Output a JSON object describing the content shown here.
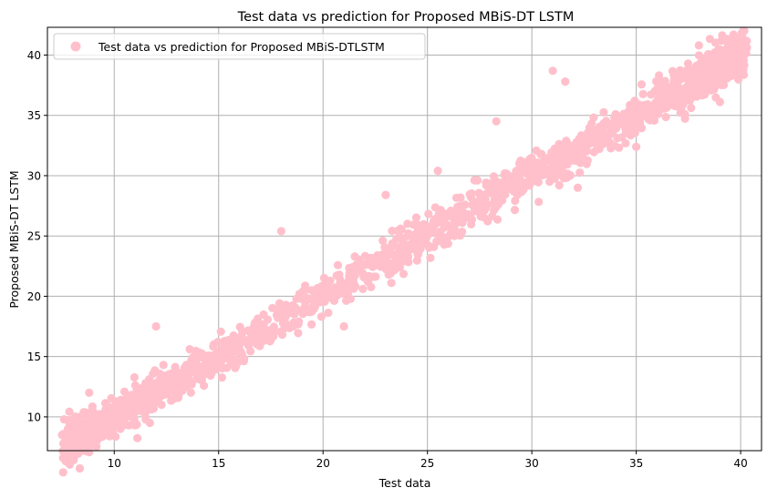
{
  "chart_data": {
    "type": "scatter",
    "title": "Test data vs prediction for Proposed MBiS-DT LSTM",
    "xlabel": "Test data",
    "ylabel": "Proposed MBiS-DT LSTM",
    "xlim": [
      6.8,
      41.0
    ],
    "ylim": [
      7.2,
      42.3
    ],
    "xticks": [
      10,
      15,
      20,
      25,
      30,
      35,
      40
    ],
    "yticks": [
      10,
      15,
      20,
      25,
      30,
      35,
      40
    ],
    "grid": true,
    "legend_position": "top-left",
    "series": [
      {
        "name": "Test data vs prediction for Proposed MBiS-DTLSTM",
        "color": "#ffc0cb",
        "point_count": 2000,
        "x_range": [
          7.5,
          40.3
        ],
        "relation": "y ≈ x",
        "notable_points": [
          {
            "x": 7.5,
            "y": 8.5
          },
          {
            "x": 7.6,
            "y": 9.8
          },
          {
            "x": 8.8,
            "y": 12.0
          },
          {
            "x": 11.0,
            "y": 9.3
          },
          {
            "x": 12.0,
            "y": 17.5
          },
          {
            "x": 18.0,
            "y": 25.4
          },
          {
            "x": 21.0,
            "y": 17.5
          },
          {
            "x": 23.0,
            "y": 28.4
          },
          {
            "x": 25.5,
            "y": 30.4
          },
          {
            "x": 28.3,
            "y": 34.5
          },
          {
            "x": 31.0,
            "y": 38.7
          },
          {
            "x": 31.6,
            "y": 37.8
          },
          {
            "x": 32.2,
            "y": 29.0
          },
          {
            "x": 35.0,
            "y": 32.4
          },
          {
            "x": 38.0,
            "y": 40.8
          },
          {
            "x": 40.3,
            "y": 40.6
          }
        ]
      }
    ]
  }
}
